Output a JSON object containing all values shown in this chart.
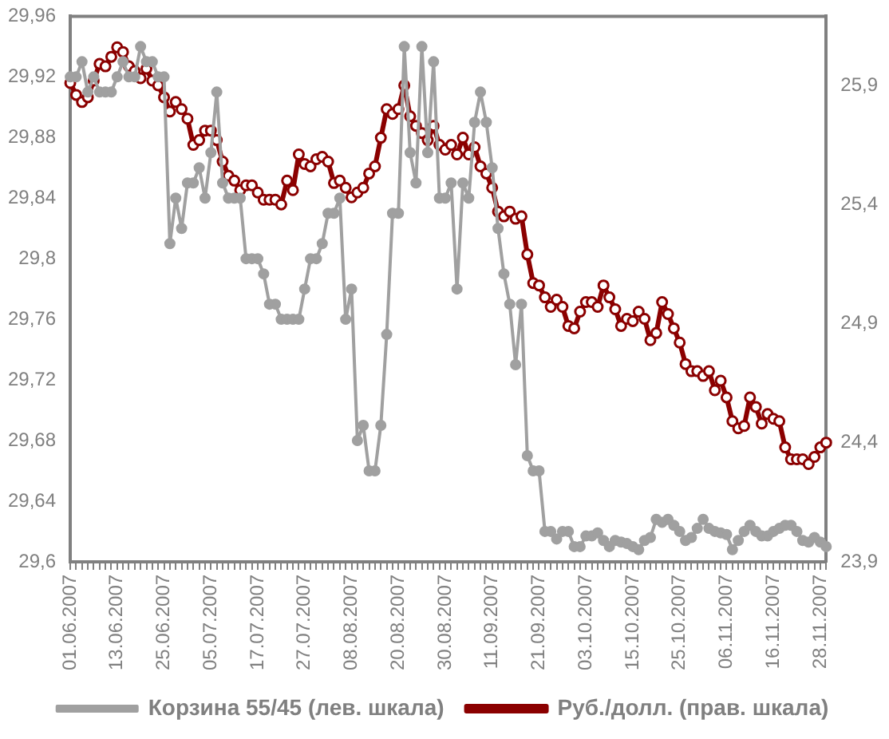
{
  "chart_data": {
    "type": "line",
    "categories": [
      "01.06.2007",
      null,
      null,
      null,
      null,
      null,
      null,
      null,
      "13.06.2007",
      null,
      null,
      null,
      null,
      null,
      null,
      null,
      "25.06.2007",
      null,
      null,
      null,
      null,
      null,
      null,
      null,
      "05.07.2007",
      null,
      null,
      null,
      null,
      null,
      null,
      null,
      "17.07.2007",
      null,
      null,
      null,
      null,
      null,
      null,
      null,
      "27.07.2007",
      null,
      null,
      null,
      null,
      null,
      null,
      null,
      "08.08.2007",
      null,
      null,
      null,
      null,
      null,
      null,
      null,
      "20.08.2007",
      null,
      null,
      null,
      null,
      null,
      null,
      null,
      "30.08.2007",
      null,
      null,
      null,
      null,
      null,
      null,
      null,
      "11.09.2007",
      null,
      null,
      null,
      null,
      null,
      null,
      null,
      "21.09.2007",
      null,
      null,
      null,
      null,
      null,
      null,
      null,
      "03.10.2007",
      null,
      null,
      null,
      null,
      null,
      null,
      null,
      "15.10.2007",
      null,
      null,
      null,
      null,
      null,
      null,
      null,
      "25.10.2007",
      null,
      null,
      null,
      null,
      null,
      null,
      null,
      "06.11.2007",
      null,
      null,
      null,
      null,
      null,
      null,
      null,
      "16.11.2007",
      null,
      null,
      null,
      null,
      null,
      null,
      null,
      "28.11.2007",
      null
    ],
    "series": [
      {
        "name": "Корзина 55/45 (лев. шкала)",
        "color": "#a0a0a0",
        "values": [
          29.92,
          29.92,
          29.93,
          29.91,
          29.92,
          29.91,
          29.91,
          29.91,
          29.92,
          29.93,
          29.92,
          29.92,
          29.94,
          29.93,
          29.93,
          29.92,
          29.92,
          29.81,
          29.84,
          29.82,
          29.85,
          29.85,
          29.86,
          29.84,
          29.87,
          29.91,
          29.85,
          29.84,
          29.84,
          29.84,
          29.8,
          29.8,
          29.8,
          29.79,
          29.77,
          29.77,
          29.76,
          29.76,
          29.76,
          29.76,
          29.78,
          29.8,
          29.8,
          29.81,
          29.83,
          29.83,
          29.84,
          29.76,
          29.78,
          29.68,
          29.69,
          29.66,
          29.66,
          29.69,
          29.75,
          29.83,
          29.83,
          29.94,
          29.87,
          29.85,
          29.94,
          29.87,
          29.93,
          29.84,
          29.84,
          29.85,
          29.78,
          29.85,
          29.84,
          29.89,
          29.91,
          29.89,
          29.86,
          29.82,
          29.79,
          29.77,
          29.73,
          29.77,
          29.67,
          29.66,
          29.66,
          29.62,
          29.62,
          29.615,
          29.62,
          29.62,
          29.61,
          29.61,
          29.617,
          29.617,
          29.619,
          29.614,
          29.61,
          29.614,
          29.613,
          29.612,
          29.61,
          29.608,
          29.614,
          29.616,
          29.628,
          29.626,
          29.628,
          29.624,
          29.62,
          29.614,
          29.616,
          29.622,
          29.628,
          29.622,
          29.62,
          29.619,
          29.618,
          29.608,
          29.614,
          29.62,
          29.624,
          29.62,
          29.617,
          29.617,
          29.62,
          29.622,
          29.624,
          29.624,
          29.62,
          29.614,
          29.613,
          29.616,
          29.613,
          29.61
        ]
      },
      {
        "name": "Руб./долл. (прав. шкала)",
        "color": "#8b0000",
        "axis": "y2",
        "values": [
          25.91,
          25.86,
          25.83,
          25.85,
          25.92,
          25.99,
          25.98,
          26.02,
          26.06,
          26.04,
          25.98,
          25.96,
          25.93,
          25.97,
          25.92,
          25.9,
          25.85,
          25.79,
          25.83,
          25.8,
          25.76,
          25.65,
          25.67,
          25.71,
          25.71,
          25.67,
          25.58,
          25.52,
          25.5,
          25.46,
          25.48,
          25.48,
          25.45,
          25.42,
          25.42,
          25.42,
          25.4,
          25.5,
          25.46,
          25.61,
          25.57,
          25.56,
          25.59,
          25.6,
          25.58,
          25.49,
          25.5,
          25.47,
          25.43,
          25.45,
          25.47,
          25.53,
          25.56,
          25.68,
          25.8,
          25.78,
          25.8,
          25.9,
          25.77,
          25.73,
          25.7,
          25.67,
          25.73,
          25.65,
          25.63,
          25.65,
          25.61,
          25.68,
          25.61,
          25.64,
          25.56,
          25.53,
          25.47,
          25.37,
          25.35,
          25.37,
          25.34,
          25.35,
          25.19,
          25.07,
          25.06,
          25.01,
          24.97,
          25.0,
          24.97,
          24.89,
          24.88,
          24.95,
          24.99,
          24.99,
          24.97,
          25.06,
          25.01,
          24.96,
          24.89,
          24.92,
          24.91,
          24.95,
          24.92,
          24.83,
          24.86,
          24.99,
          24.94,
          24.88,
          24.82,
          24.73,
          24.7,
          24.7,
          24.68,
          24.7,
          24.62,
          24.66,
          24.59,
          24.49,
          24.46,
          24.47,
          24.59,
          24.55,
          24.48,
          24.52,
          24.5,
          24.49,
          24.38,
          24.33,
          24.33,
          24.33,
          24.31,
          24.34,
          24.38,
          24.4
        ]
      }
    ],
    "ylim": [
      29.6,
      29.96
    ],
    "yticks": [
      {
        "value": 29.6,
        "label": "29,6"
      },
      {
        "value": 29.64,
        "label": "29,64"
      },
      {
        "value": 29.68,
        "label": "29,68"
      },
      {
        "value": 29.72,
        "label": "29,72"
      },
      {
        "value": 29.76,
        "label": "29,76"
      },
      {
        "value": 29.8,
        "label": "29,8"
      },
      {
        "value": 29.84,
        "label": "29,84"
      },
      {
        "value": 29.88,
        "label": "29,88"
      },
      {
        "value": 29.92,
        "label": "29,92"
      },
      {
        "value": 29.96,
        "label": "29,96"
      }
    ],
    "y2lim": [
      23.9,
      26.19
    ],
    "y2ticks": [
      {
        "value": 23.9,
        "label": "23,9"
      },
      {
        "value": 24.4,
        "label": "24,4"
      },
      {
        "value": 24.9,
        "label": "24,9"
      },
      {
        "value": 25.4,
        "label": "25,4"
      },
      {
        "value": 25.9,
        "label": "25,9"
      }
    ],
    "marker": "circle",
    "legend": "bottom"
  }
}
